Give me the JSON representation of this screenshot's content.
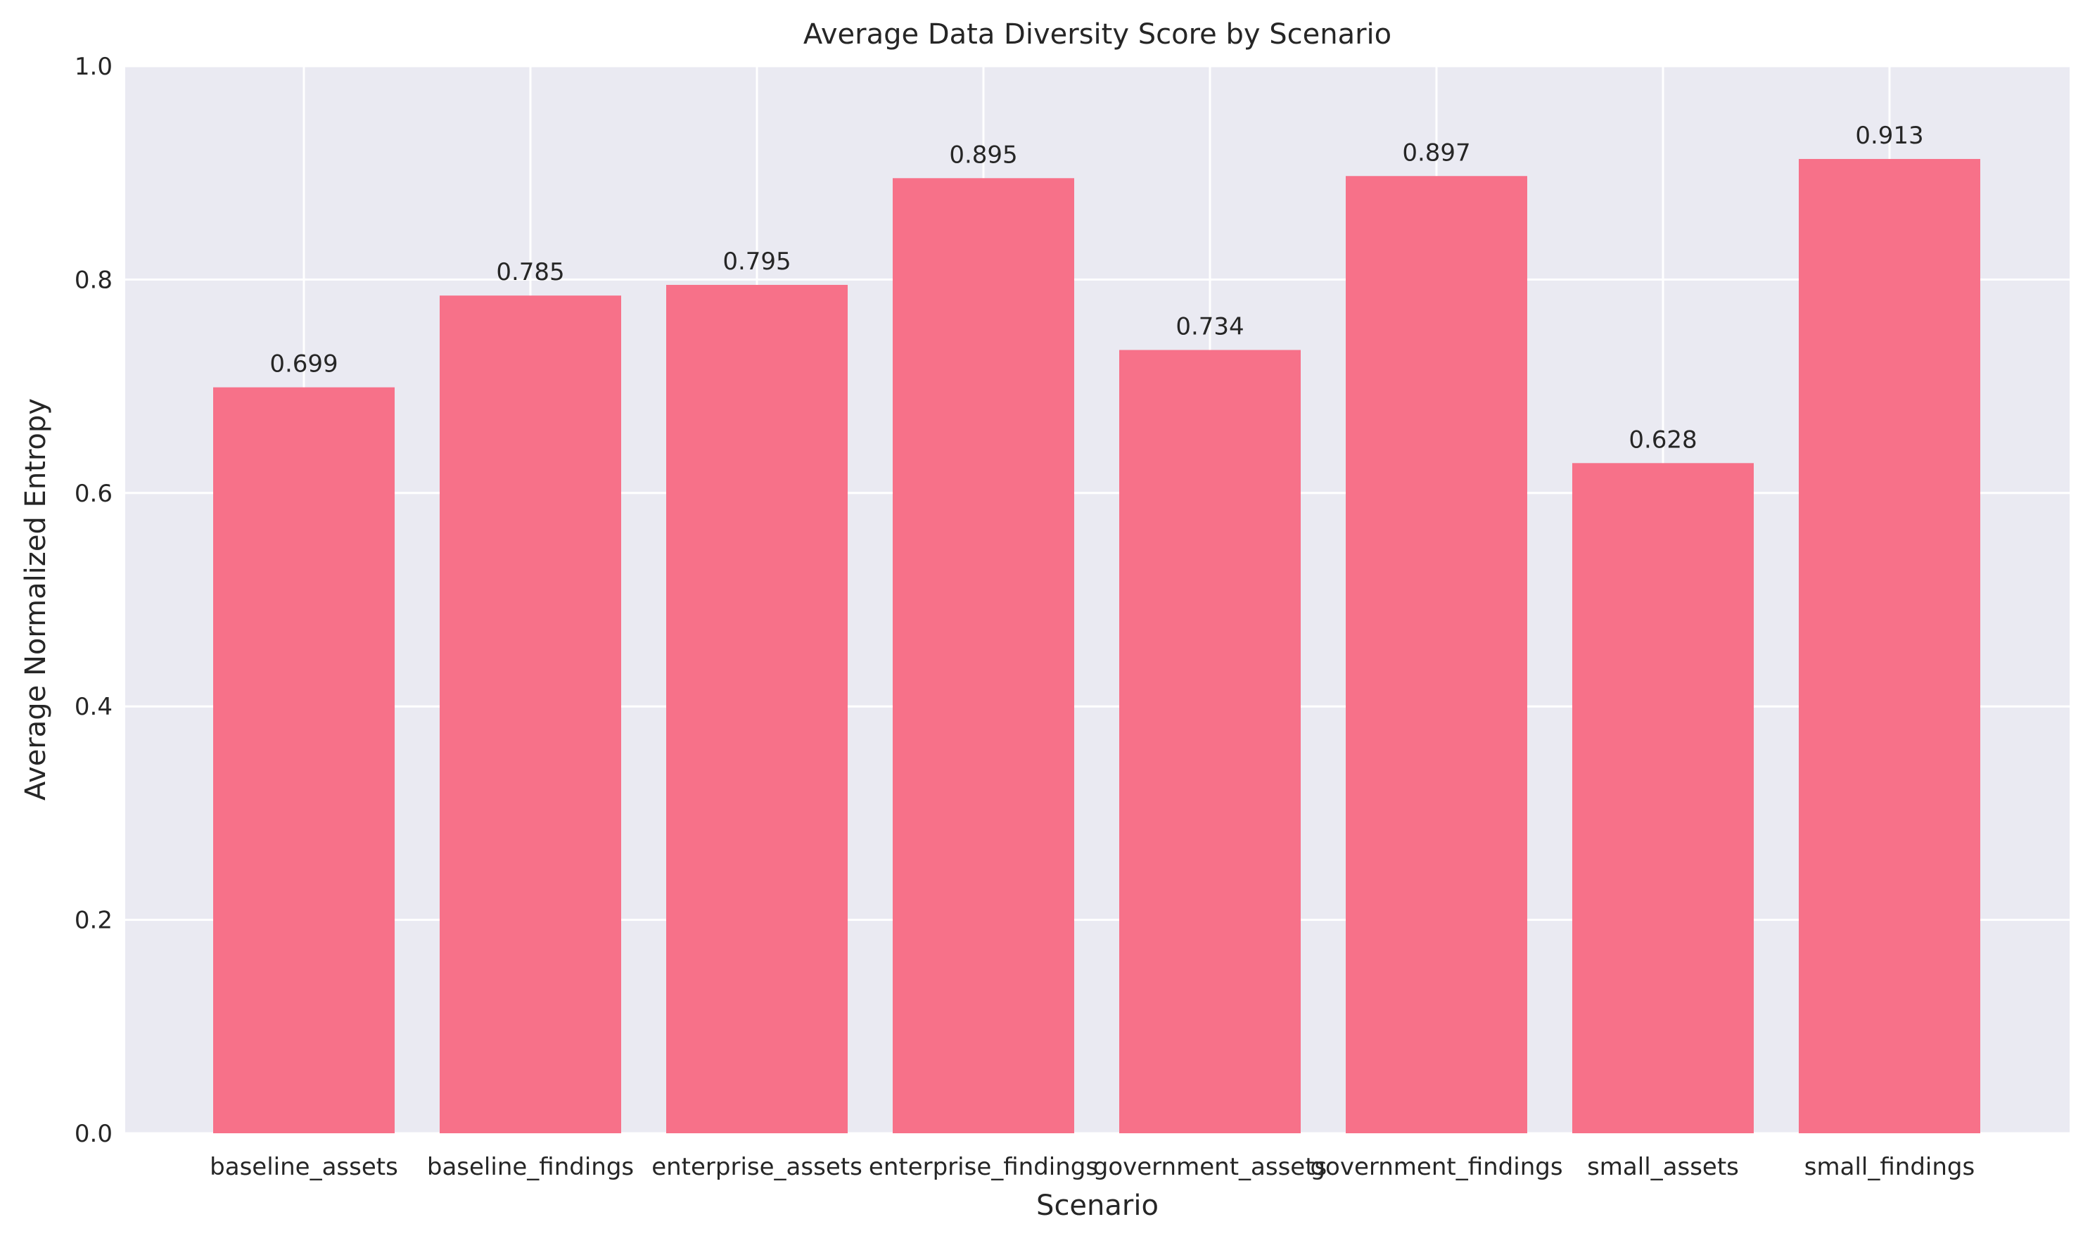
{
  "chart_data": {
    "type": "bar",
    "title": "Average Data Diversity Score by Scenario",
    "xlabel": "Scenario",
    "ylabel": "Average Normalized Entropy",
    "categories": [
      "baseline_assets",
      "baseline_findings",
      "enterprise_assets",
      "enterprise_findings",
      "government_assets",
      "government_findings",
      "small_assets",
      "small_findings"
    ],
    "values": [
      0.699,
      0.785,
      0.795,
      0.895,
      0.734,
      0.897,
      0.628,
      0.913
    ],
    "data_labels": [
      "0.699",
      "0.785",
      "0.795",
      "0.895",
      "0.734",
      "0.897",
      "0.628",
      "0.913"
    ],
    "ylim": [
      0,
      1.0
    ],
    "yticks": [
      "0.0",
      "0.2",
      "0.4",
      "0.6",
      "0.8",
      "1.0"
    ],
    "grid": true,
    "colors": {
      "bar": "#f77189",
      "plot_background": "#eaeaf2",
      "grid": "#ffffff",
      "text": "#262626"
    }
  }
}
